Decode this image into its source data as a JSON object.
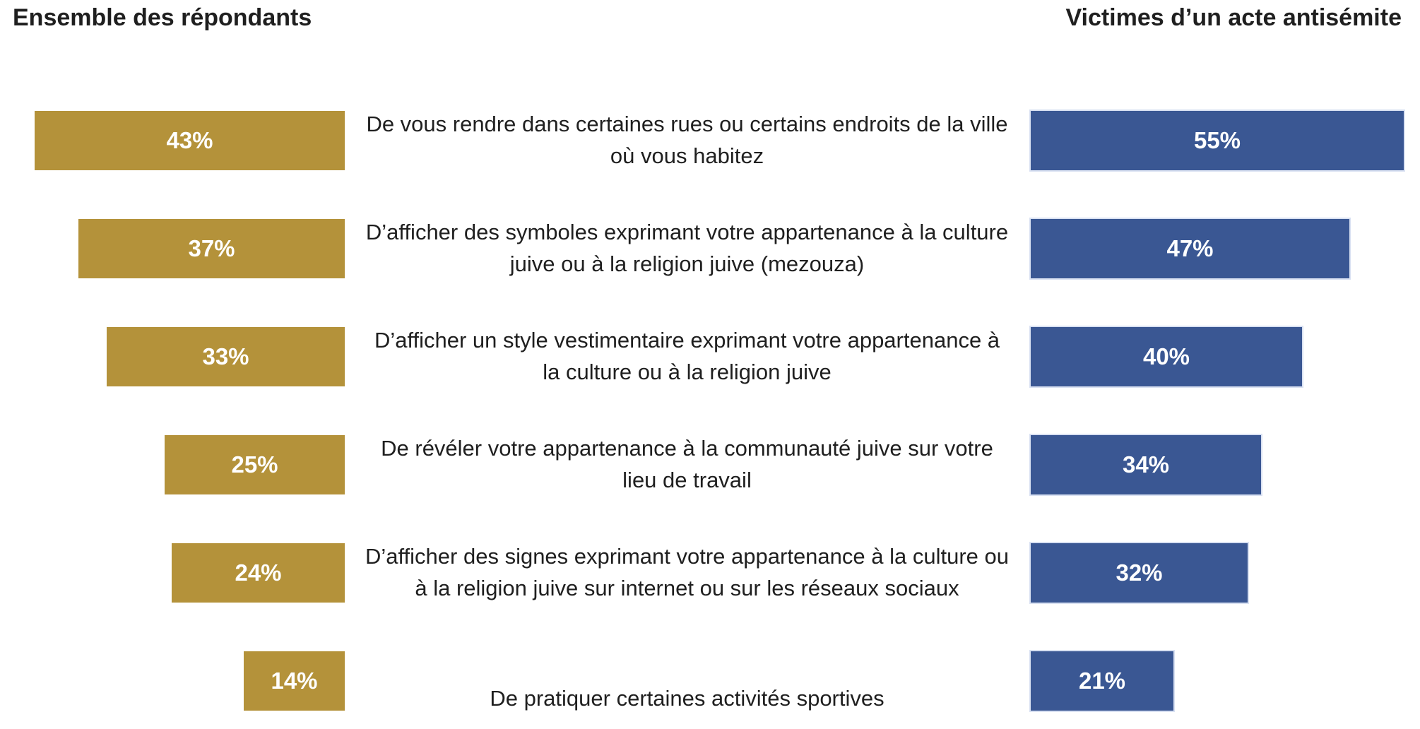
{
  "header_left": "Ensemble des répondants",
  "header_right": "Victimes d’un acte antisémite",
  "colors": {
    "gold_bar": "#B4923A",
    "blue_bar": "#3A5793",
    "blue_bar_border": "#D9E1F2",
    "text": "#1F1F1F",
    "value_text": "#FFFFFF"
  },
  "rows": [
    {
      "label": "De vous rendre dans certaines rues ou certains endroits de la ville où vous habitez",
      "left_value_label": "43%",
      "right_value_label": "55%"
    },
    {
      "label": "D’afficher des symboles exprimant votre appartenance à la culture juive ou à la religion juive (mezouza)",
      "left_value_label": "37%",
      "right_value_label": "47%"
    },
    {
      "label": "D’afficher un style vestimentaire exprimant votre appartenance à la culture ou à la religion juive",
      "left_value_label": "33%",
      "right_value_label": "40%"
    },
    {
      "label": "De révéler votre appartenance à la communauté juive sur votre lieu de travail",
      "left_value_label": "25%",
      "right_value_label": "34%"
    },
    {
      "label": "D’afficher des signes exprimant votre appartenance à la culture ou à la religion juive sur internet ou sur les réseaux sociaux",
      "left_value_label": "24%",
      "right_value_label": "32%"
    },
    {
      "label": "De pratiquer certaines activités sportives",
      "left_value_label": "14%",
      "right_value_label": "21%"
    }
  ],
  "chart_data": {
    "type": "bar",
    "orientation": "horizontal",
    "title": "",
    "categories": [
      "De vous rendre dans certaines rues ou certains endroits de la ville où vous habitez",
      "D’afficher des symboles exprimant votre appartenance à la culture juive ou à la religion juive (mezouza)",
      "D’afficher un style vestimentaire exprimant votre appartenance à la culture ou à la religion juive",
      "De révéler votre appartenance à la communauté juive sur votre lieu de travail",
      "D’afficher des signes exprimant votre appartenance à la culture ou à la religion juive sur internet ou sur les réseaux sociaux",
      "De pratiquer certaines activités sportives"
    ],
    "series": [
      {
        "name": "Ensemble des répondants",
        "values": [
          43,
          37,
          33,
          25,
          24,
          14
        ],
        "color": "#B4923A",
        "alignment": "right-aligned bars, left panel"
      },
      {
        "name": "Victimes d’un acte antisémite",
        "values": [
          55,
          47,
          40,
          34,
          32,
          21
        ],
        "color": "#3A5793",
        "alignment": "left-aligned bars, right panel"
      }
    ],
    "value_format": "percent",
    "data_labels": "inside bars, white bold",
    "legend_position": "column headers above each bar panel",
    "axis": "none (no visible axes or gridlines)"
  }
}
